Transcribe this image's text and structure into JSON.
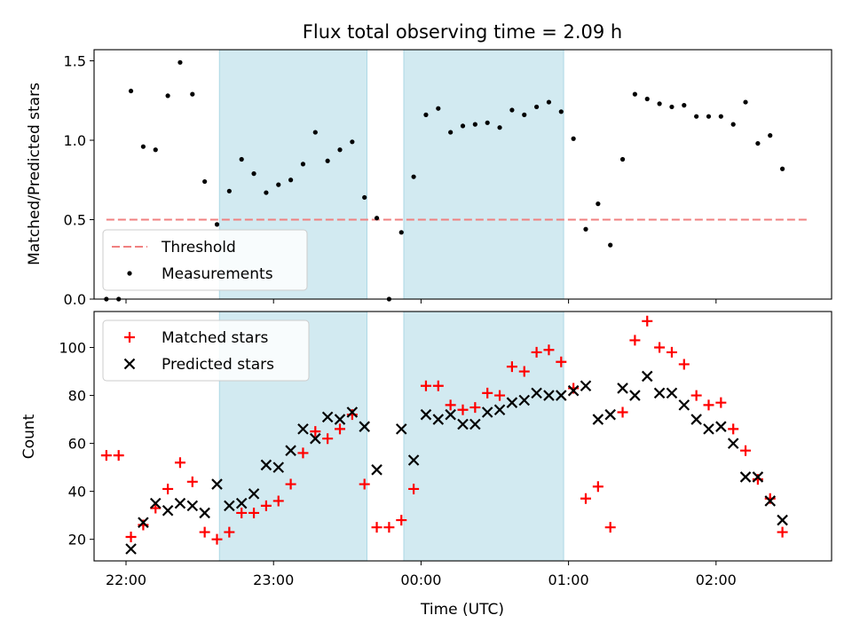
{
  "chart_data": {
    "title": "Flux total observing time = 2.09 h",
    "xlabel": "Time (UTC)",
    "x_ticks": [
      "22:00",
      "23:00",
      "00:00",
      "01:00",
      "02:00"
    ],
    "x_range": [
      "21:47",
      "02:47"
    ],
    "shaded_intervals": [
      [
        "22:38",
        "23:38"
      ],
      [
        "23:53",
        "00:58"
      ]
    ],
    "shade_color": "#add8e6",
    "panels": [
      {
        "type": "scatter",
        "ylabel": "Matched/Predicted stars",
        "ylim": [
          0,
          1.57
        ],
        "yticks": [
          0.0,
          0.5,
          1.0,
          1.5
        ],
        "legend_position": "lower-left",
        "threshold": {
          "name": "Threshold",
          "value": 0.5,
          "x_start": "21:52",
          "x_end": "02:37",
          "color": "#f08080"
        },
        "series": [
          {
            "name": "Measurements",
            "color": "#000000",
            "marker": "dot",
            "points": [
              [
                "21:52",
                0.0
              ],
              [
                "21:57",
                0.0
              ],
              [
                "22:02",
                1.31
              ],
              [
                "22:07",
                0.96
              ],
              [
                "22:12",
                0.94
              ],
              [
                "22:17",
                1.28
              ],
              [
                "22:22",
                1.49
              ],
              [
                "22:27",
                1.29
              ],
              [
                "22:32",
                0.74
              ],
              [
                "22:37",
                0.47
              ],
              [
                "22:42",
                0.68
              ],
              [
                "22:47",
                0.88
              ],
              [
                "22:52",
                0.79
              ],
              [
                "22:57",
                0.67
              ],
              [
                "23:02",
                0.72
              ],
              [
                "23:07",
                0.75
              ],
              [
                "23:12",
                0.85
              ],
              [
                "23:17",
                1.05
              ],
              [
                "23:22",
                0.87
              ],
              [
                "23:27",
                0.94
              ],
              [
                "23:32",
                0.99
              ],
              [
                "23:37",
                0.64
              ],
              [
                "23:42",
                0.51
              ],
              [
                "23:47",
                0.0
              ],
              [
                "23:52",
                0.42
              ],
              [
                "23:57",
                0.77
              ],
              [
                "00:02",
                1.16
              ],
              [
                "00:07",
                1.2
              ],
              [
                "00:12",
                1.05
              ],
              [
                "00:17",
                1.09
              ],
              [
                "00:22",
                1.1
              ],
              [
                "00:27",
                1.11
              ],
              [
                "00:32",
                1.08
              ],
              [
                "00:37",
                1.19
              ],
              [
                "00:42",
                1.16
              ],
              [
                "00:47",
                1.21
              ],
              [
                "00:52",
                1.24
              ],
              [
                "00:57",
                1.18
              ],
              [
                "01:02",
                1.01
              ],
              [
                "01:07",
                0.44
              ],
              [
                "01:12",
                0.6
              ],
              [
                "01:17",
                0.34
              ],
              [
                "01:22",
                0.88
              ],
              [
                "01:27",
                1.29
              ],
              [
                "01:32",
                1.26
              ],
              [
                "01:37",
                1.23
              ],
              [
                "01:42",
                1.21
              ],
              [
                "01:47",
                1.22
              ],
              [
                "01:52",
                1.15
              ],
              [
                "01:57",
                1.15
              ],
              [
                "02:02",
                1.15
              ],
              [
                "02:07",
                1.1
              ],
              [
                "02:12",
                1.24
              ],
              [
                "02:17",
                0.98
              ],
              [
                "02:22",
                1.03
              ],
              [
                "02:27",
                0.82
              ]
            ]
          }
        ]
      },
      {
        "type": "scatter",
        "ylabel": "Count",
        "ylim": [
          11,
          115
        ],
        "yticks": [
          20,
          40,
          60,
          80,
          100
        ],
        "legend_position": "upper-left",
        "series": [
          {
            "name": "Matched stars",
            "color": "#ff0000",
            "marker": "plus",
            "points": [
              [
                "21:52",
                55
              ],
              [
                "21:57",
                55
              ],
              [
                "22:02",
                21
              ],
              [
                "22:07",
                26
              ],
              [
                "22:12",
                33
              ],
              [
                "22:17",
                41
              ],
              [
                "22:22",
                52
              ],
              [
                "22:27",
                44
              ],
              [
                "22:32",
                23
              ],
              [
                "22:37",
                20
              ],
              [
                "22:42",
                23
              ],
              [
                "22:47",
                31
              ],
              [
                "22:52",
                31
              ],
              [
                "22:57",
                34
              ],
              [
                "23:02",
                36
              ],
              [
                "23:07",
                43
              ],
              [
                "23:12",
                56
              ],
              [
                "23:17",
                65
              ],
              [
                "23:22",
                62
              ],
              [
                "23:27",
                66
              ],
              [
                "23:32",
                72
              ],
              [
                "23:37",
                43
              ],
              [
                "23:42",
                25
              ],
              [
                "23:47",
                25
              ],
              [
                "23:52",
                28
              ],
              [
                "23:57",
                41
              ],
              [
                "00:02",
                84
              ],
              [
                "00:07",
                84
              ],
              [
                "00:12",
                76
              ],
              [
                "00:17",
                74
              ],
              [
                "00:22",
                75
              ],
              [
                "00:27",
                81
              ],
              [
                "00:32",
                80
              ],
              [
                "00:37",
                92
              ],
              [
                "00:42",
                90
              ],
              [
                "00:47",
                98
              ],
              [
                "00:52",
                99
              ],
              [
                "00:57",
                94
              ],
              [
                "01:02",
                83
              ],
              [
                "01:07",
                37
              ],
              [
                "01:12",
                42
              ],
              [
                "01:17",
                25
              ],
              [
                "01:22",
                73
              ],
              [
                "01:27",
                103
              ],
              [
                "01:32",
                111
              ],
              [
                "01:37",
                100
              ],
              [
                "01:42",
                98
              ],
              [
                "01:47",
                93
              ],
              [
                "01:52",
                80
              ],
              [
                "01:57",
                76
              ],
              [
                "02:02",
                77
              ],
              [
                "02:07",
                66
              ],
              [
                "02:12",
                57
              ],
              [
                "02:17",
                45
              ],
              [
                "02:22",
                37
              ],
              [
                "02:27",
                23
              ]
            ]
          },
          {
            "name": "Predicted stars",
            "color": "#000000",
            "marker": "x",
            "points": [
              [
                "22:02",
                16
              ],
              [
                "22:07",
                27
              ],
              [
                "22:12",
                35
              ],
              [
                "22:17",
                32
              ],
              [
                "22:22",
                35
              ],
              [
                "22:27",
                34
              ],
              [
                "22:32",
                31
              ],
              [
                "22:37",
                43
              ],
              [
                "22:42",
                34
              ],
              [
                "22:47",
                35
              ],
              [
                "22:52",
                39
              ],
              [
                "22:57",
                51
              ],
              [
                "23:02",
                50
              ],
              [
                "23:07",
                57
              ],
              [
                "23:12",
                66
              ],
              [
                "23:17",
                62
              ],
              [
                "23:22",
                71
              ],
              [
                "23:27",
                70
              ],
              [
                "23:32",
                73
              ],
              [
                "23:37",
                67
              ],
              [
                "23:42",
                49
              ],
              [
                "23:52",
                66
              ],
              [
                "23:57",
                53
              ],
              [
                "00:02",
                72
              ],
              [
                "00:07",
                70
              ],
              [
                "00:12",
                72
              ],
              [
                "00:17",
                68
              ],
              [
                "00:22",
                68
              ],
              [
                "00:27",
                73
              ],
              [
                "00:32",
                74
              ],
              [
                "00:37",
                77
              ],
              [
                "00:42",
                78
              ],
              [
                "00:47",
                81
              ],
              [
                "00:52",
                80
              ],
              [
                "00:57",
                80
              ],
              [
                "01:02",
                82
              ],
              [
                "01:07",
                84
              ],
              [
                "01:12",
                70
              ],
              [
                "01:17",
                72
              ],
              [
                "01:22",
                83
              ],
              [
                "01:27",
                80
              ],
              [
                "01:32",
                88
              ],
              [
                "01:37",
                81
              ],
              [
                "01:42",
                81
              ],
              [
                "01:47",
                76
              ],
              [
                "01:52",
                70
              ],
              [
                "01:57",
                66
              ],
              [
                "02:02",
                67
              ],
              [
                "02:07",
                60
              ],
              [
                "02:12",
                46
              ],
              [
                "02:17",
                46
              ],
              [
                "02:22",
                36
              ],
              [
                "02:27",
                28
              ]
            ]
          }
        ]
      }
    ]
  }
}
